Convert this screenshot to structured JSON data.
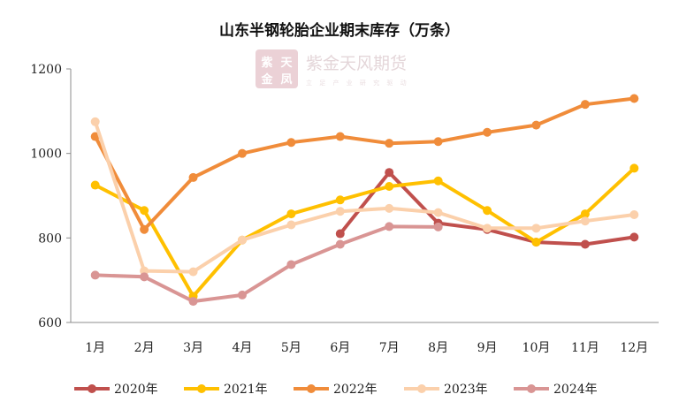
{
  "watermark": {
    "seal_text": [
      "紫",
      "天",
      "金",
      "凤"
    ],
    "brand": "紫金天风期货",
    "slogan": "立 足 产 业   研 究 驱 动"
  },
  "chart_data": {
    "type": "line",
    "title": "山东半钢轮胎企业期末库存（万条）",
    "categories": [
      "1月",
      "2月",
      "3月",
      "4月",
      "5月",
      "6月",
      "7月",
      "8月",
      "9月",
      "10月",
      "11月",
      "12月"
    ],
    "ylim": [
      600,
      1200
    ],
    "yticks": [
      600,
      800,
      1000,
      1200
    ],
    "grid": false,
    "legend_position": "bottom",
    "series": [
      {
        "name": "2020年",
        "color": "#c0504d",
        "values": [
          null,
          null,
          null,
          null,
          null,
          810,
          955,
          835,
          820,
          790,
          785,
          802
        ]
      },
      {
        "name": "2021年",
        "color": "#ffc000",
        "values": [
          925,
          865,
          662,
          795,
          857,
          890,
          922,
          935,
          865,
          790,
          857,
          965
        ]
      },
      {
        "name": "2022年",
        "color": "#f08c3a",
        "values": [
          1040,
          820,
          943,
          1000,
          1026,
          1040,
          1024,
          1028,
          1050,
          1067,
          1116,
          1130
        ]
      },
      {
        "name": "2023年",
        "color": "#fbd0ab",
        "values": [
          1075,
          722,
          720,
          795,
          831,
          863,
          870,
          860,
          823,
          823,
          840,
          855
        ]
      },
      {
        "name": "2024年",
        "color": "#d99594",
        "values": [
          712,
          708,
          650,
          665,
          737,
          785,
          827,
          826,
          null,
          null,
          null,
          null
        ]
      }
    ]
  }
}
